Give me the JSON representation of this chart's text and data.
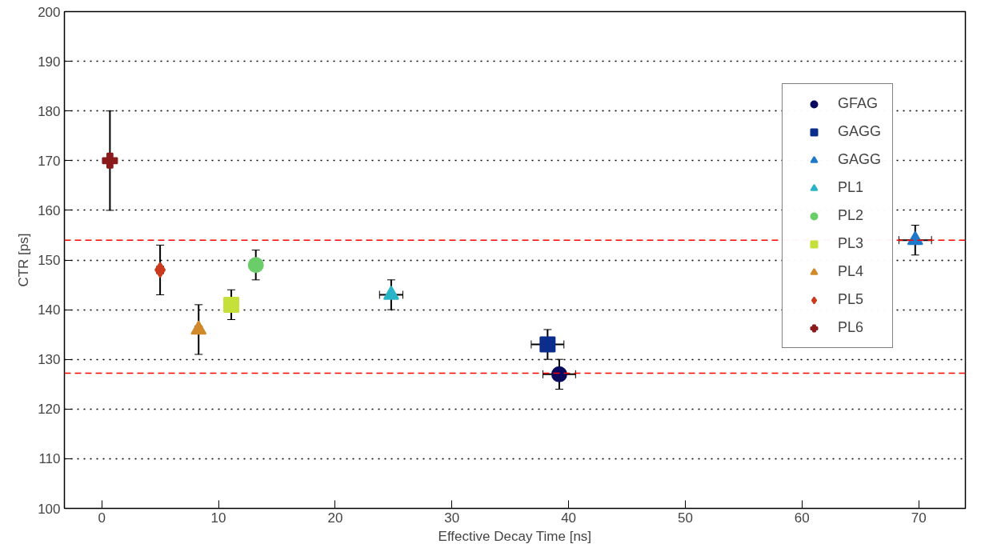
{
  "chart_data": {
    "type": "scatter",
    "xlabel": "Effective Decay Time [ns]",
    "ylabel": "CTR [ps]",
    "xlim": [
      -3.2,
      74
    ],
    "ylim": [
      100,
      200
    ],
    "xticks": [
      0,
      10,
      20,
      30,
      40,
      50,
      60,
      70
    ],
    "yticks": [
      100,
      110,
      120,
      130,
      140,
      150,
      160,
      170,
      180,
      190,
      200
    ],
    "grid": "y",
    "legend": "top right",
    "series": [
      {
        "name": "GFAG",
        "color": "#0a0a5e",
        "marker": "circle",
        "x": [
          39.2
        ],
        "values": [
          127
        ],
        "errors": [
          3
        ],
        "xerrors": [
          1.4
        ]
      },
      {
        "name": "GAGG",
        "color": "#0b2d8c",
        "marker": "square",
        "x": [
          38.2
        ],
        "values": [
          133
        ],
        "errors": [
          3
        ],
        "xerrors": [
          1.4
        ]
      },
      {
        "name": "GAGG",
        "color": "#1f78c8",
        "marker": "triangle",
        "x": [
          69.7
        ],
        "values": [
          154
        ],
        "errors": [
          3
        ],
        "xerrors": [
          1.4
        ]
      },
      {
        "name": "PL1",
        "color": "#29b5c8",
        "marker": "triangle",
        "x": [
          24.8
        ],
        "values": [
          143
        ],
        "errors": [
          3
        ],
        "xerrors": [
          1.0
        ]
      },
      {
        "name": "PL2",
        "color": "#6acd6a",
        "marker": "circle",
        "x": [
          13.2
        ],
        "values": [
          149
        ],
        "errors": [
          3
        ]
      },
      {
        "name": "PL3",
        "color": "#c5e03a",
        "marker": "square",
        "x": [
          11.1
        ],
        "values": [
          141
        ],
        "errors": [
          3
        ]
      },
      {
        "name": "PL4",
        "color": "#d08a2a",
        "marker": "triangle",
        "x": [
          8.3
        ],
        "values": [
          136
        ],
        "errors": [
          5
        ],
        "xerrors": [
          0.3
        ]
      },
      {
        "name": "PL5",
        "color": "#cc3a1e",
        "marker": "diamond",
        "x": [
          5.0
        ],
        "values": [
          148
        ],
        "errors": [
          5
        ],
        "xerrors": [
          0.3
        ]
      },
      {
        "name": "PL6",
        "color": "#8b1a1a",
        "marker": "cross",
        "x": [
          0.7
        ],
        "values": [
          170
        ],
        "errors": [
          10
        ]
      }
    ],
    "ref_lines": [
      {
        "axis": "y",
        "value": 154,
        "color": "#ff0000",
        "line_style": "dashed"
      },
      {
        "axis": "y",
        "value": 127.2,
        "color": "#ff0000",
        "line_style": "dashed"
      }
    ]
  }
}
